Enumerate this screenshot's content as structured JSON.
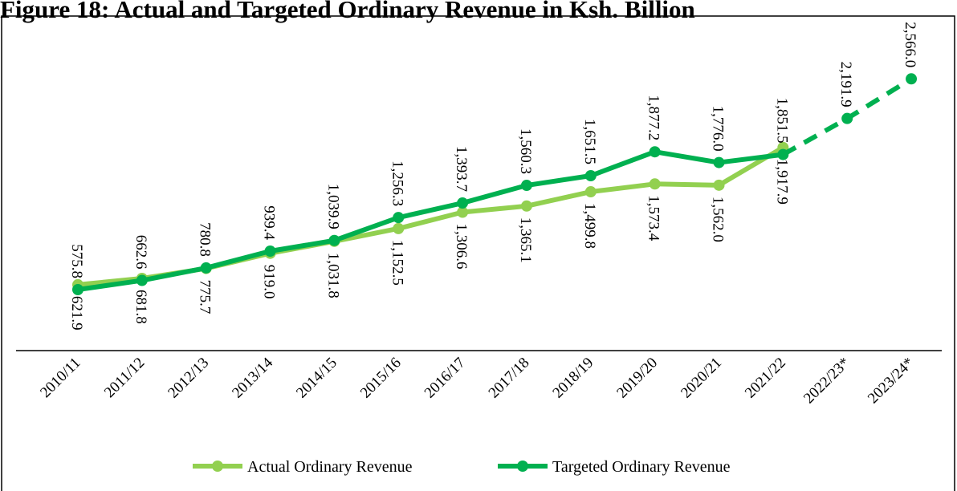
{
  "chart_data": {
    "type": "line",
    "title": "Figure 18: Actual and Targeted Ordinary Revenue in Ksh. Billion",
    "categories": [
      "2010/11",
      "2011/12",
      "2012/13",
      "2013/14",
      "2014/15",
      "2015/16",
      "2016/17",
      "2017/18",
      "2018/19",
      "2019/20",
      "2020/21",
      "2021/22",
      "2022/23*",
      "2023/24*"
    ],
    "series": [
      {
        "name": "Actual Ordinary Revenue",
        "color": "#92d050",
        "values": [
          621.9,
          681.8,
          775.7,
          919.0,
          1031.8,
          1152.5,
          1306.6,
          1365.1,
          1499.8,
          1573.4,
          1562.0,
          1917.9,
          null,
          null
        ],
        "value_labels": [
          "621.9",
          "681.8",
          "775.7",
          "919.0",
          "1,031.8",
          "1,152.5",
          "1,306.6",
          "1,365.1",
          "1,499.8",
          "1,573.4",
          "1,562.0",
          "1,917.9",
          null,
          null
        ],
        "label_position": "below"
      },
      {
        "name": "Targeted Ordinary Revenue",
        "color": "#00b050",
        "values": [
          575.8,
          662.6,
          780.8,
          939.4,
          1039.9,
          1256.3,
          1393.7,
          1560.3,
          1651.5,
          1877.2,
          1776.0,
          1851.5,
          2191.9,
          2566.0
        ],
        "value_labels": [
          "575.8",
          "662.6",
          "780.8",
          "939.4",
          "1,039.9",
          "1,256.3",
          "1,393.7",
          "1,560.3",
          "1,651.5",
          "1,877.2",
          "1,776.0",
          "1,851.5",
          "2,191.9",
          "2,566.0"
        ],
        "label_position": "above",
        "dashed_from": 11
      }
    ],
    "ylim": [
      0,
      3000
    ],
    "legend": "bottom"
  }
}
